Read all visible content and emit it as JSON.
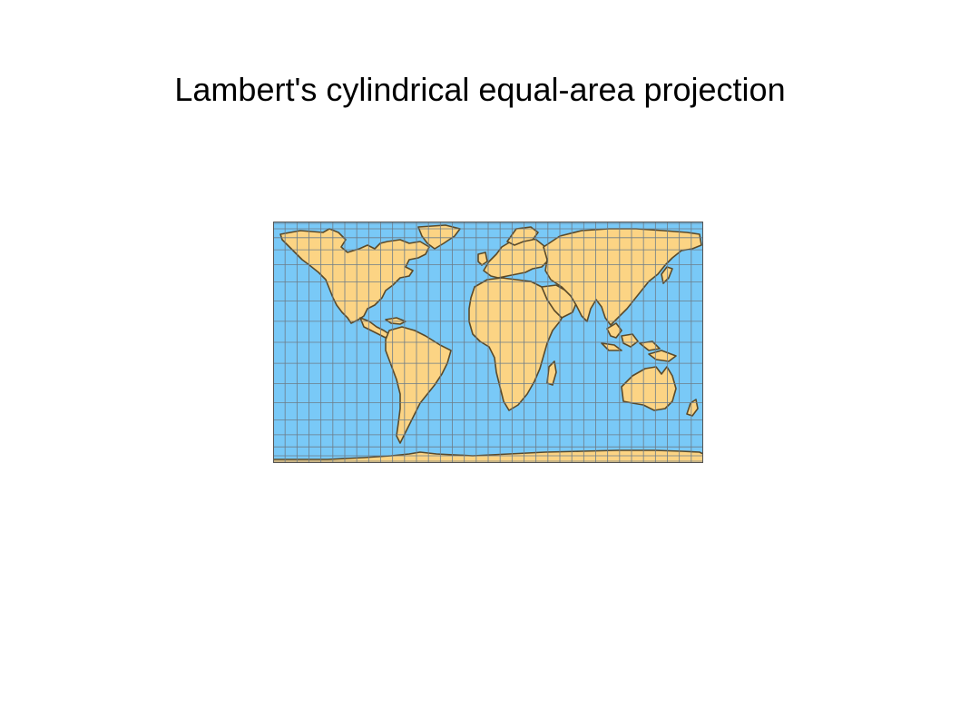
{
  "slide": {
    "title": "Lambert's cylindrical equal-area projection"
  },
  "map": {
    "projection": "Lambert cylindrical equal-area",
    "graticule_step_degrees": 10,
    "colors": {
      "ocean": "#79c9f7",
      "land": "#fcd484",
      "coast": "#5a4a2a",
      "graticule": "#6d7c88",
      "frame": "#555555"
    }
  }
}
